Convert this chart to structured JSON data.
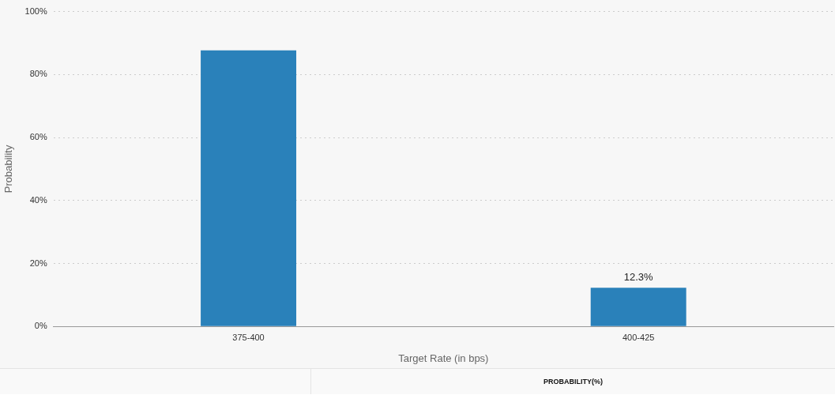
{
  "chart_data": {
    "type": "bar",
    "xlabel": "Target Rate (in bps)",
    "ylabel": "Probability",
    "categories": [
      "375-400",
      "400-425"
    ],
    "values": [
      87.7,
      12.3
    ],
    "color": "#2a81ba",
    "value_labels": [
      null,
      "12.3%"
    ],
    "ylim": [
      0,
      100
    ],
    "yticks": [
      {
        "value": 0,
        "label": "0%"
      },
      {
        "value": 20,
        "label": "20%"
      },
      {
        "value": 40,
        "label": "40%"
      },
      {
        "value": 60,
        "label": "60%"
      },
      {
        "value": 80,
        "label": "80%"
      },
      {
        "value": 100,
        "label": "100%"
      }
    ],
    "grid": "y",
    "legend": false,
    "annotations": [
      "PROBABILITY(%)"
    ]
  }
}
